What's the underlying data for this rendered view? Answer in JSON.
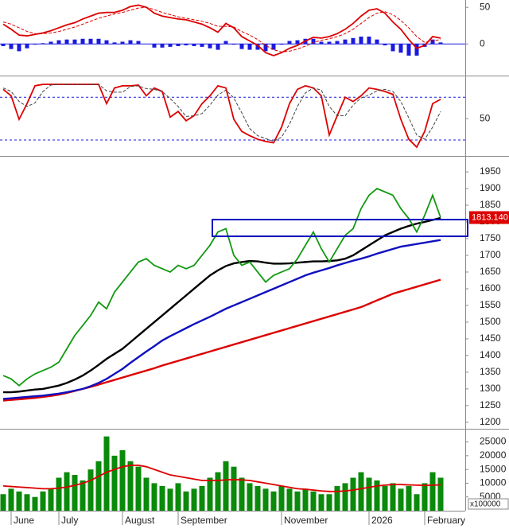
{
  "chart_data": [
    {
      "type": "line",
      "ylim": [
        -40,
        60
      ],
      "yticks": [
        0,
        50
      ],
      "series": [
        {
          "type": "bar",
          "color": "#1a1adf",
          "values": [
            -3,
            -7,
            -10,
            -6,
            -1,
            1,
            3,
            5,
            6,
            6,
            7,
            7,
            7,
            5,
            2,
            3,
            5,
            4,
            0,
            -5,
            -5,
            -4,
            -3,
            -2,
            -3,
            -4,
            -6,
            -8,
            4,
            -1,
            -7,
            -8,
            -8,
            -10,
            -8,
            -1,
            4,
            5,
            7,
            7,
            3,
            3,
            4,
            6,
            8,
            10,
            10,
            6,
            -2,
            -10,
            -12,
            -16,
            -16,
            -4,
            6,
            2
          ]
        },
        {
          "color": "#dd0000",
          "style": "solid",
          "values": [
            27,
            20,
            12,
            11,
            13,
            15,
            18,
            22,
            26,
            29,
            34,
            38,
            42,
            43,
            43,
            46,
            51,
            53,
            50,
            42,
            38,
            36,
            34,
            33,
            30,
            27,
            22,
            16,
            28,
            22,
            10,
            4,
            -2,
            -12,
            -16,
            -12,
            -6,
            -2,
            4,
            9,
            8,
            10,
            14,
            20,
            28,
            38,
            46,
            48,
            42,
            30,
            20,
            6,
            -6,
            -2,
            10,
            8
          ]
        },
        {
          "color": "#dd0000",
          "style": "dashed",
          "values": [
            30,
            27,
            22,
            17,
            14,
            14,
            15,
            17,
            20,
            23,
            27,
            31,
            35,
            38,
            41,
            43,
            46,
            49,
            50,
            47,
            43,
            40,
            37,
            35,
            33,
            31,
            28,
            24,
            24,
            23,
            17,
            12,
            6,
            -2,
            -8,
            -11,
            -10,
            -7,
            -3,
            2,
            5,
            7,
            10,
            14,
            20,
            28,
            36,
            42,
            44,
            40,
            32,
            22,
            10,
            2,
            4,
            6
          ]
        }
      ]
    },
    {
      "type": "line",
      "ylim": [
        1,
        107
      ],
      "yticks": [
        50
      ],
      "reference_lines": [
        20,
        80
      ],
      "reference_color": "#1a1adf",
      "series": [
        {
          "color": "#dd0000",
          "style": "solid",
          "values": [
            91,
            82,
            49,
            71,
            96,
            98,
            98,
            98,
            98,
            98,
            98,
            98,
            98,
            71,
            93,
            96,
            96,
            97,
            82,
            93,
            88,
            52,
            60,
            47,
            54,
            71,
            82,
            96,
            93,
            49,
            32,
            26,
            21,
            18,
            16,
            38,
            71,
            91,
            96,
            93,
            82,
            27,
            54,
            80,
            74,
            82,
            93,
            91,
            88,
            84,
            49,
            21,
            10,
            32,
            71,
            77
          ]
        },
        {
          "color": "#444444",
          "style": "dashed",
          "values": [
            93,
            88,
            74,
            67,
            72,
            88,
            97,
            98,
            98,
            98,
            98,
            98,
            98,
            89,
            87,
            87,
            95,
            96,
            92,
            91,
            88,
            78,
            67,
            53,
            54,
            57,
            69,
            83,
            90,
            79,
            58,
            36,
            26,
            22,
            18,
            24,
            42,
            67,
            86,
            93,
            90,
            67,
            54,
            54,
            69,
            79,
            83,
            89,
            91,
            88,
            74,
            51,
            27,
            21,
            38,
            60
          ]
        }
      ]
    },
    {
      "type": "line",
      "ylim": [
        1183,
        1993
      ],
      "yticks": [
        1200,
        1250,
        1300,
        1350,
        1400,
        1450,
        1500,
        1550,
        1600,
        1650,
        1700,
        1750,
        1800,
        1850,
        1900,
        1950
      ],
      "zone": [
        1757,
        1807
      ],
      "zone_color": "#1010c0",
      "last_price": {
        "value": 1813.14,
        "label": "1813.140"
      },
      "series": [
        {
          "color": "#dd0000",
          "style": "thick",
          "values": [
            1265,
            1267,
            1269,
            1271,
            1273,
            1276,
            1279,
            1283,
            1288,
            1294,
            1300,
            1306,
            1313,
            1320,
            1327,
            1334,
            1341,
            1348,
            1355,
            1362,
            1370,
            1377,
            1384,
            1391,
            1398,
            1405,
            1412,
            1419,
            1426,
            1433,
            1440,
            1447,
            1454,
            1461,
            1468,
            1475,
            1482,
            1489,
            1496,
            1503,
            1510,
            1517,
            1524,
            1531,
            1538,
            1545,
            1555,
            1565,
            1575,
            1585,
            1592,
            1599,
            1606,
            1613,
            1620,
            1627
          ]
        },
        {
          "color": "#1010c0",
          "style": "thick",
          "values": [
            1270,
            1272,
            1274,
            1276,
            1278,
            1280,
            1283,
            1286,
            1290,
            1295,
            1300,
            1308,
            1318,
            1330,
            1345,
            1360,
            1378,
            1395,
            1412,
            1428,
            1445,
            1458,
            1470,
            1482,
            1494,
            1505,
            1516,
            1528,
            1540,
            1550,
            1560,
            1570,
            1580,
            1590,
            1600,
            1610,
            1620,
            1630,
            1640,
            1648,
            1655,
            1662,
            1670,
            1677,
            1684,
            1690,
            1697,
            1705,
            1712,
            1719,
            1726,
            1730,
            1734,
            1738,
            1742,
            1746
          ]
        },
        {
          "color": "#000000",
          "style": "thick",
          "values": [
            1290,
            1290,
            1292,
            1295,
            1298,
            1300,
            1305,
            1310,
            1318,
            1328,
            1340,
            1355,
            1372,
            1390,
            1405,
            1420,
            1440,
            1460,
            1480,
            1500,
            1520,
            1540,
            1560,
            1580,
            1600,
            1620,
            1640,
            1655,
            1668,
            1676,
            1680,
            1683,
            1682,
            1678,
            1675,
            1675,
            1676,
            1678,
            1680,
            1682,
            1682,
            1683,
            1685,
            1690,
            1700,
            1715,
            1730,
            1745,
            1760,
            1770,
            1780,
            1788,
            1795,
            1800,
            1806,
            1812
          ]
        },
        {
          "color": "#119911",
          "style": "solid",
          "values": [
            1340,
            1330,
            1310,
            1330,
            1345,
            1355,
            1365,
            1380,
            1420,
            1460,
            1490,
            1520,
            1560,
            1540,
            1590,
            1620,
            1650,
            1680,
            1690,
            1670,
            1660,
            1650,
            1670,
            1660,
            1670,
            1700,
            1730,
            1770,
            1780,
            1700,
            1670,
            1680,
            1650,
            1620,
            1640,
            1650,
            1660,
            1690,
            1730,
            1770,
            1720,
            1680,
            1720,
            1760,
            1780,
            1840,
            1880,
            1900,
            1890,
            1880,
            1840,
            1810,
            1770,
            1820,
            1880,
            1813.14
          ]
        }
      ]
    },
    {
      "type": "bar",
      "ylim": [
        0,
        29500
      ],
      "yticks": [
        5000,
        10000,
        15000,
        20000,
        25000
      ],
      "unit_label": "x100000",
      "categories": [
        null,
        "June",
        null,
        null,
        null,
        null,
        null,
        "July",
        null,
        null,
        null,
        null,
        null,
        null,
        null,
        "August",
        null,
        null,
        null,
        null,
        null,
        null,
        "September",
        null,
        null,
        null,
        null,
        null,
        null,
        null,
        null,
        null,
        null,
        null,
        null,
        "November",
        null,
        null,
        null,
        null,
        null,
        null,
        null,
        null,
        null,
        null,
        "2026",
        null,
        null,
        null,
        null,
        null,
        null,
        "February",
        null,
        null
      ],
      "series": [
        {
          "type": "bar",
          "color": "#0a8a0a",
          "values": [
            6000,
            8000,
            7000,
            6000,
            5000,
            7000,
            8000,
            12000,
            14000,
            13000,
            11000,
            15000,
            18000,
            27000,
            20000,
            22000,
            18000,
            16000,
            12000,
            10000,
            9000,
            8000,
            10000,
            7000,
            8000,
            9000,
            12000,
            14000,
            18000,
            16000,
            12000,
            10000,
            9000,
            8000,
            7000,
            9000,
            8000,
            7000,
            8000,
            7000,
            6000,
            6000,
            9000,
            10000,
            12000,
            14000,
            12000,
            11000,
            9000,
            10000,
            8000,
            9000,
            6000,
            10000,
            14000,
            12000
          ]
        },
        {
          "color": "#dd0000",
          "style": "solid",
          "values": [
            9000,
            8800,
            8600,
            8400,
            8200,
            8000,
            8000,
            8200,
            8600,
            9200,
            10000,
            11000,
            12500,
            14000,
            15000,
            16000,
            16500,
            16500,
            16000,
            15000,
            14000,
            13000,
            12500,
            12000,
            11500,
            11000,
            11000,
            11000,
            11200,
            11300,
            11200,
            11000,
            10500,
            10000,
            9500,
            9000,
            8500,
            8000,
            7800,
            7500,
            7200,
            7000,
            7000,
            7200,
            7500,
            8000,
            8500,
            9000,
            9300,
            9500,
            9500,
            9400,
            9300,
            9200,
            9300,
            9400
          ]
        }
      ]
    }
  ]
}
